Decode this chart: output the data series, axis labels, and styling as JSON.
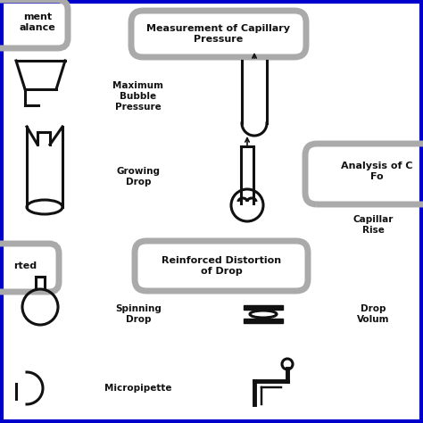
{
  "bg_color": "#ffffff",
  "border_color": "#0000cc",
  "border_lw": 3,
  "gray": "#aaaaaa",
  "black": "#111111",
  "lw_bubble": 5,
  "lw_sym": 2.2,
  "fontsize_header": 8,
  "fontsize_item": 7.5,
  "labels": {
    "cap_pressure": "Measurement of Capillary\nPressure",
    "max_bubble": "Maximum\nBubble\nPressure",
    "growing_drop": "Growing\nDrop",
    "reinforced": "Reinforced Distortion\nof Drop",
    "spinning_drop": "Spinning\nDrop",
    "micropipette": "Micropipette",
    "analysis_of": "Analysis of C\nFo",
    "capillary_rise": "Capillar\nRise",
    "drop_volume": "Drop\nVolum",
    "left_top": "ment\nalance",
    "left_mid": "rted"
  }
}
